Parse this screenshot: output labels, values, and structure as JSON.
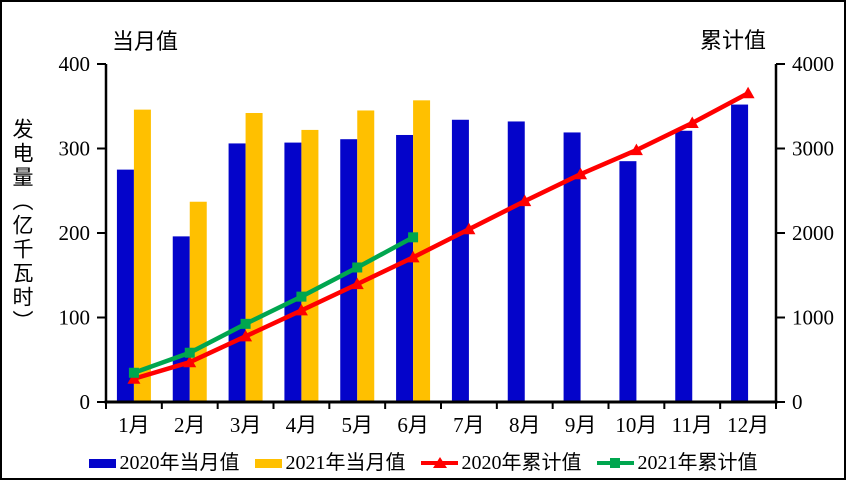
{
  "titles": {
    "left_axis_title": "当月值",
    "right_axis_title": "累计值",
    "y_axis_label": "发电量（亿千瓦时）"
  },
  "legend": {
    "items": [
      {
        "label": "2020年当月值",
        "marker": "bar",
        "color": "#0404CA"
      },
      {
        "label": "2021年当月值",
        "marker": "bar",
        "color": "#FFC000"
      },
      {
        "label": "2020年累计值",
        "marker": "triangle",
        "color": "#FF0000"
      },
      {
        "label": "2021年累计值",
        "marker": "square",
        "color": "#00A64F"
      }
    ]
  },
  "chart_data": {
    "type": "bar",
    "subtype": "combo-bar-line-dual-axis",
    "title": "",
    "xlabel": "",
    "ylabel": "发电量（亿千瓦时）",
    "categories": [
      "1月",
      "2月",
      "3月",
      "4月",
      "5月",
      "6月",
      "7月",
      "8月",
      "9月",
      "10月",
      "11月",
      "12月"
    ],
    "left_axis": {
      "title": "当月值",
      "range": [
        0,
        400
      ],
      "ticks": [
        0,
        100,
        200,
        300,
        400
      ]
    },
    "right_axis": {
      "title": "累计值",
      "range": [
        0,
        4000
      ],
      "ticks": [
        0,
        1000,
        2000,
        3000,
        4000
      ]
    },
    "grid": false,
    "legend_position": "bottom",
    "series": [
      {
        "name": "2020年当月值",
        "type": "bar",
        "axis": "left",
        "color": "#0404CA",
        "values": [
          275,
          196,
          306,
          307,
          311,
          316,
          334,
          332,
          319,
          285,
          321,
          352
        ]
      },
      {
        "name": "2021年当月值",
        "type": "bar",
        "axis": "left",
        "color": "#FFC000",
        "values": [
          346,
          237,
          342,
          322,
          345,
          357
        ]
      },
      {
        "name": "2020年累计值",
        "type": "line",
        "marker": "triangle",
        "axis": "right",
        "color": "#FF0000",
        "values": [
          275,
          471,
          777,
          1084,
          1395,
          1711,
          2045,
          2377,
          2696,
          2981,
          3302,
          3654
        ]
      },
      {
        "name": "2021年累计值",
        "type": "line",
        "marker": "square",
        "axis": "right",
        "color": "#00A64F",
        "values": [
          346,
          583,
          925,
          1247,
          1592,
          1949
        ]
      }
    ]
  }
}
